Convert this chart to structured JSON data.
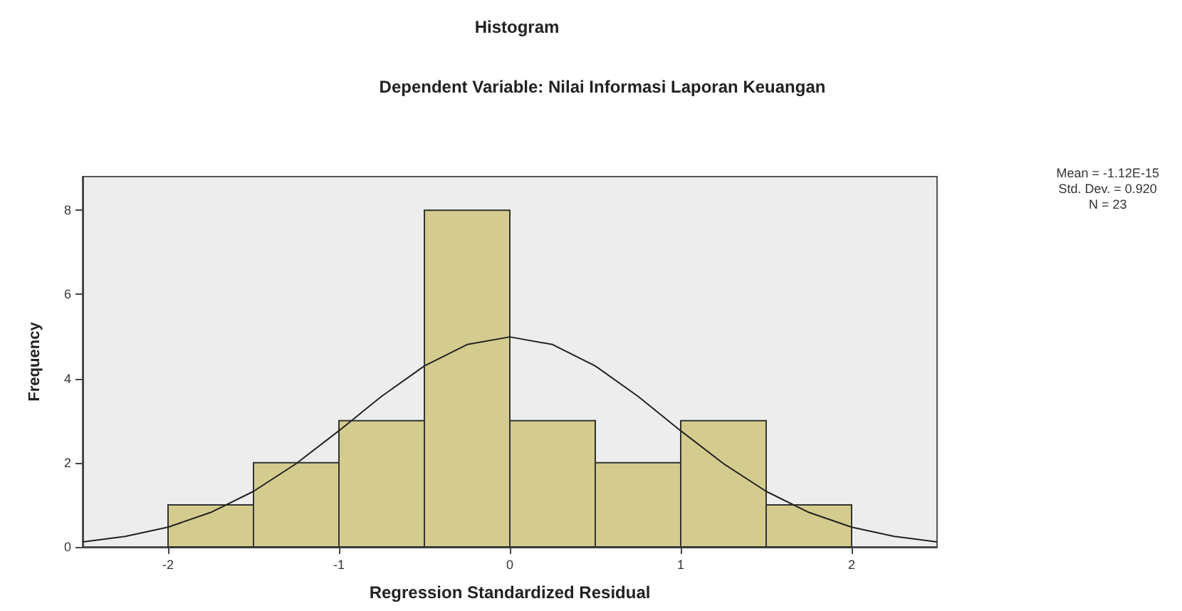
{
  "chart_data": {
    "type": "histogram",
    "title": "Histogram",
    "subtitle": "Dependent Variable: Nilai Informasi Laporan Keuangan",
    "xlabel": "Regression Standardized Residual",
    "ylabel": "Frequency",
    "xlim": [
      -2.5,
      2.5
    ],
    "xticks": [
      -2,
      -1,
      0,
      1,
      2
    ],
    "ylim": [
      0,
      8.8
    ],
    "yticks": [
      0,
      2,
      4,
      6,
      8
    ],
    "grid": false,
    "series": [
      {
        "type": "histogram",
        "color": "#d4cc8e",
        "bins": [
          -2,
          -1.5,
          -1,
          -0.5,
          0,
          0.5,
          1,
          1.5,
          2
        ],
        "values": [
          1,
          2,
          3,
          8,
          3,
          2,
          3,
          1
        ]
      },
      {
        "type": "line",
        "color": "#222222",
        "x": [
          -2.5,
          -2.25,
          -2,
          -1.75,
          -1.5,
          -1.25,
          -1,
          -0.75,
          -0.5,
          -0.25,
          0,
          0.25,
          0.5,
          0.75,
          1,
          1.25,
          1.5,
          1.75,
          2,
          2.25,
          2.5
        ],
        "values": [
          0.12,
          0.25,
          0.47,
          0.82,
          1.32,
          1.98,
          2.76,
          3.58,
          4.3,
          4.81,
          4.99,
          4.81,
          4.3,
          3.58,
          2.76,
          1.98,
          1.32,
          0.82,
          0.47,
          0.25,
          0.12
        ]
      }
    ],
    "annotations": [
      "Mean = -1.12E-15",
      "Std. Dev. = 0.920",
      "N = 23"
    ]
  }
}
